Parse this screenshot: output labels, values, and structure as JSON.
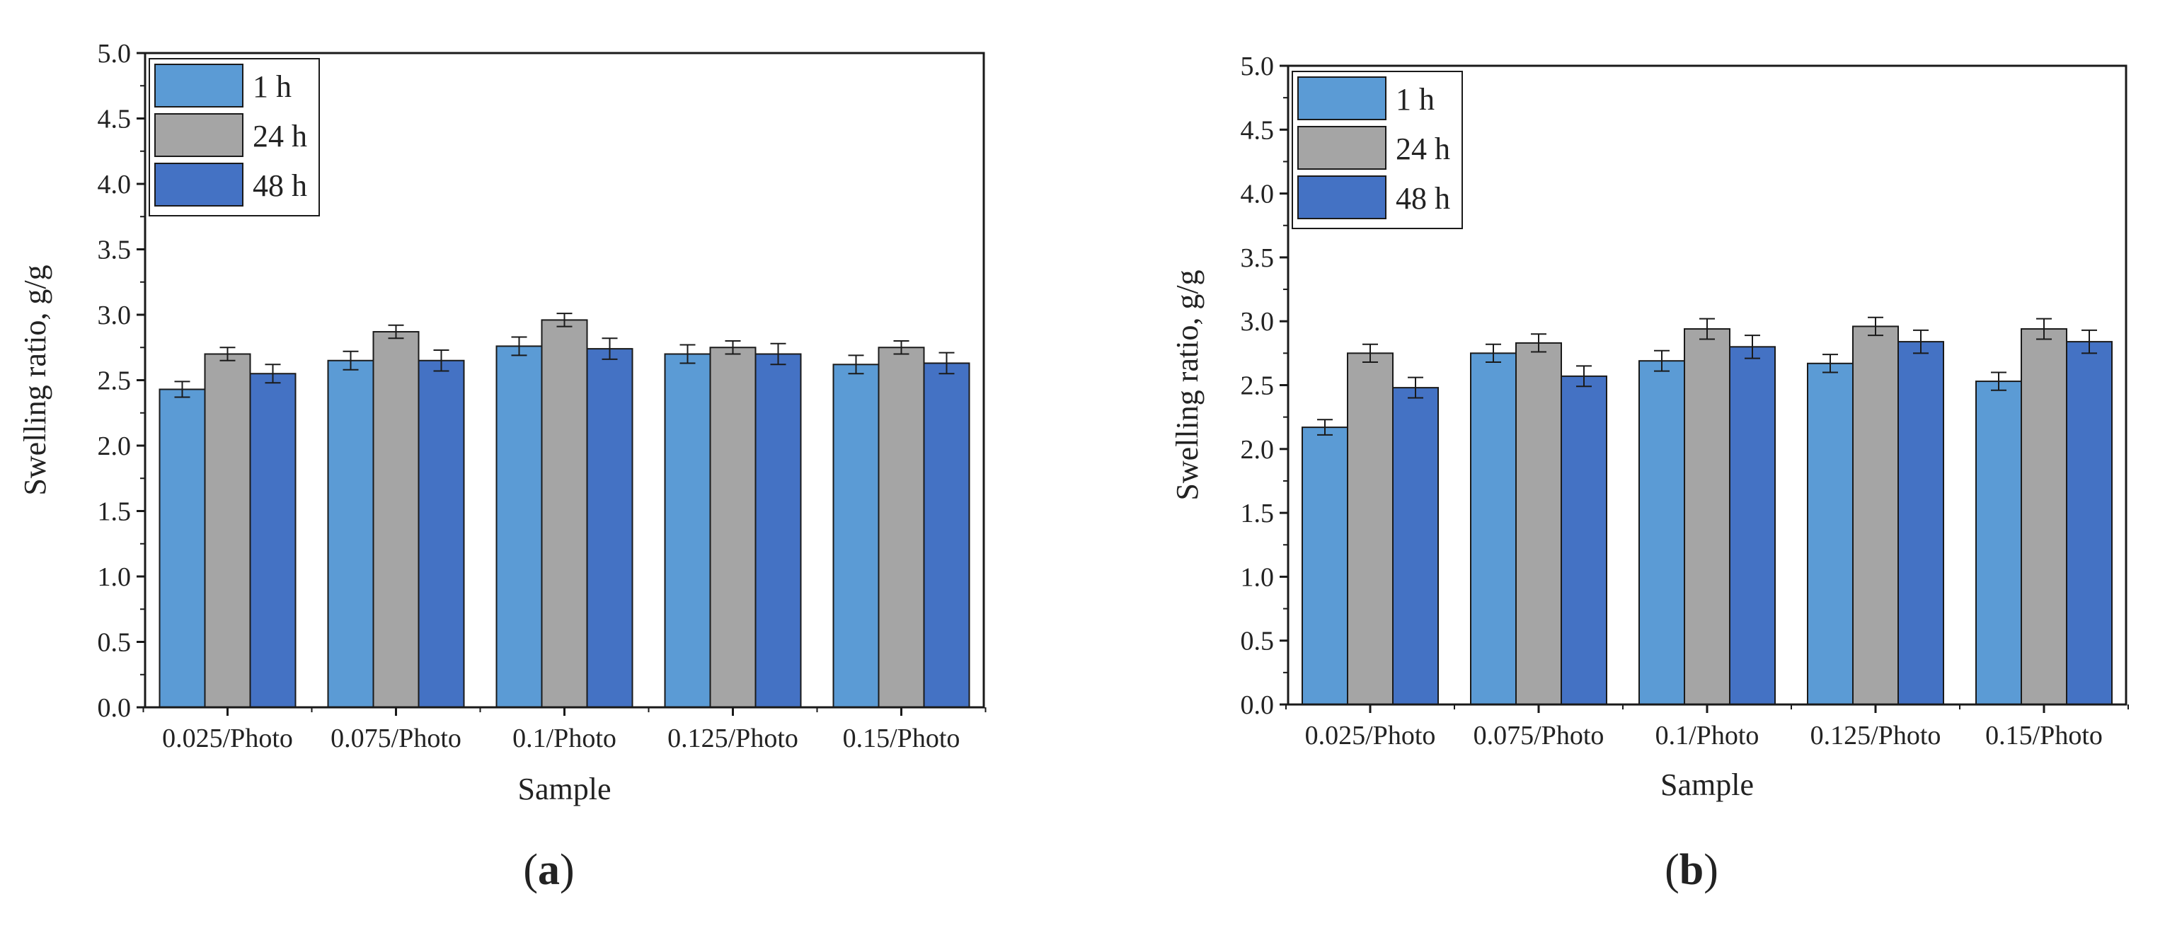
{
  "chart_data": [
    {
      "type": "bar",
      "panel_label": "a",
      "xlabel": "Sample",
      "ylabel": "Swelling ratio, g/g",
      "ylim": [
        0,
        5.0
      ],
      "yticks": [
        "0.0",
        "0.5",
        "1.0",
        "1.5",
        "2.0",
        "2.5",
        "3.0",
        "3.5",
        "4.0",
        "4.5",
        "5.0"
      ],
      "categories": [
        "0.025/Photo",
        "0.075/Photo",
        "0.1/Photo",
        "0.125/Photo",
        "0.15/Photo"
      ],
      "legend_position": "top-left",
      "series": [
        {
          "name": "1 h",
          "color": "#5b9bd5",
          "values": [
            2.43,
            2.65,
            2.76,
            2.7,
            2.62
          ],
          "errors": [
            0.06,
            0.07,
            0.07,
            0.07,
            0.07
          ]
        },
        {
          "name": "24 h",
          "color": "#a5a5a5",
          "values": [
            2.7,
            2.87,
            2.96,
            2.75,
            2.75
          ],
          "errors": [
            0.05,
            0.05,
            0.05,
            0.05,
            0.05
          ]
        },
        {
          "name": "48 h",
          "color": "#4472c4",
          "values": [
            2.55,
            2.65,
            2.74,
            2.7,
            2.63
          ],
          "errors": [
            0.07,
            0.08,
            0.08,
            0.08,
            0.08
          ]
        }
      ]
    },
    {
      "type": "bar",
      "panel_label": "b",
      "xlabel": "Sample",
      "ylabel": "Swelling ratio, g/g",
      "ylim": [
        0,
        5.0
      ],
      "yticks": [
        "0.0",
        "0.5",
        "1.0",
        "1.5",
        "2.0",
        "2.5",
        "3.0",
        "3.5",
        "4.0",
        "4.5",
        "5.0"
      ],
      "categories": [
        "0.025/Photo",
        "0.075/Photo",
        "0.1/Photo",
        "0.125/Photo",
        "0.15/Photo"
      ],
      "legend_position": "top-left",
      "series": [
        {
          "name": "1 h",
          "color": "#5b9bd5",
          "values": [
            2.17,
            2.75,
            2.69,
            2.67,
            2.53
          ],
          "errors": [
            0.06,
            0.07,
            0.08,
            0.07,
            0.07
          ]
        },
        {
          "name": "24 h",
          "color": "#a5a5a5",
          "values": [
            2.75,
            2.83,
            2.94,
            2.96,
            2.94
          ],
          "errors": [
            0.07,
            0.07,
            0.08,
            0.07,
            0.08
          ]
        },
        {
          "name": "48 h",
          "color": "#4472c4",
          "values": [
            2.48,
            2.57,
            2.8,
            2.84,
            2.84
          ],
          "errors": [
            0.08,
            0.08,
            0.09,
            0.09,
            0.09
          ]
        }
      ]
    }
  ]
}
